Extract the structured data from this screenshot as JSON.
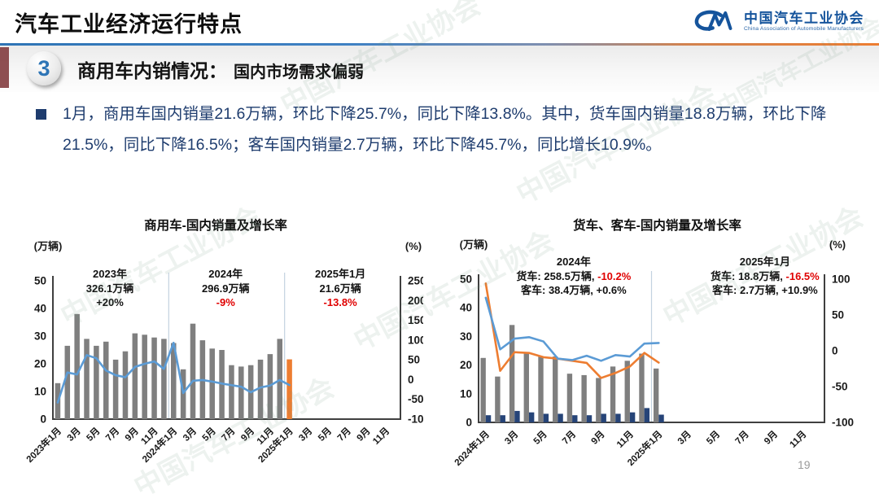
{
  "header": {
    "title": "汽车工业经济运行特点"
  },
  "logo": {
    "org_cn": "中国汽车工业协会",
    "org_en": "China Association of Automobile Manufacturers"
  },
  "section": {
    "number": "3",
    "title": "商用车内销情况：",
    "subtitle": "国内市场需求偏弱"
  },
  "bullet": {
    "text": "1月，商用车国内销量21.6万辆，环比下降25.7%，同比下降13.8%。其中，货车国内销量18.8万辆，环比下降21.5%，同比下降16.5%；客车国内销量2.7万辆，环比下降45.7%，同比增长10.9%。"
  },
  "watermark": {
    "text": "中国汽车工业协会"
  },
  "page": {
    "number": "19"
  },
  "colors": {
    "bar_gray": "#7f7f7f",
    "bar_orange": "#ED7D31",
    "bar_navy": "#264478",
    "line_blue": "#5B9BD5",
    "line_orange": "#ED7D31",
    "negative_red": "#e00000",
    "text_blue": "#1e3c6e",
    "logo_blue": "#15549c"
  },
  "chart_data": [
    {
      "type": "bar+line",
      "title": "商用车-国内销量及增长率",
      "months_total": 36,
      "x_tick_every": 2,
      "x_tick_labels": [
        "2023年1月",
        "3月",
        "5月",
        "7月",
        "9月",
        "11月",
        "2024年1月",
        "3月",
        "5月",
        "7月",
        "9月",
        "11月",
        "2025年1月",
        "3月",
        "5月",
        "7月",
        "9月",
        "11月"
      ],
      "left_axis": {
        "label": "(万辆)",
        "ticks": [
          50,
          40,
          30,
          20,
          10,
          0
        ],
        "range": [
          0,
          50
        ]
      },
      "right_axis": {
        "label": "(%)",
        "ticks": [
          250,
          200,
          150,
          100,
          50,
          0,
          -50,
          -100
        ],
        "range": [
          -100,
          250
        ]
      },
      "dividers": [
        12,
        24
      ],
      "bar_series": [
        {
          "name": "商用车国内销量(万辆)",
          "color": "#7f7f7f",
          "last_color": "#ED7D31",
          "values": [
            13,
            26.5,
            38,
            29,
            26.5,
            28,
            21.5,
            24.5,
            31,
            30.5,
            29.5,
            29,
            27.5,
            18,
            34.5,
            28.5,
            25.5,
            25,
            19.5,
            19,
            19.5,
            21.5,
            23.5,
            29,
            21.6
          ]
        }
      ],
      "line_series": [
        {
          "name": "同比增长率(%)",
          "color": "#5B9BD5",
          "values": [
            -58,
            18,
            13,
            62,
            54,
            23,
            11,
            6,
            32,
            40,
            46,
            27,
            93,
            -34,
            -3,
            -1,
            -5,
            -10,
            -14,
            -18,
            -32,
            -20,
            -15,
            -1,
            -13.8
          ]
        }
      ],
      "annotations": [
        {
          "x_pct": 0.164,
          "lines": [
            [
              {
                "t": "2023年"
              }
            ],
            [
              {
                "t": "326.1万辆"
              }
            ],
            [
              {
                "t": "+20%"
              }
            ]
          ]
        },
        {
          "x_pct": 0.497,
          "lines": [
            [
              {
                "t": "2024年"
              }
            ],
            [
              {
                "t": "296.9万辆"
              }
            ],
            [
              {
                "t": "-9%",
                "red": true
              }
            ]
          ]
        },
        {
          "x_pct": 0.827,
          "lines": [
            [
              {
                "t": "2025年1月"
              }
            ],
            [
              {
                "t": "21.6万辆"
              }
            ],
            [
              {
                "t": "-13.8%",
                "red": true
              }
            ]
          ]
        }
      ]
    },
    {
      "type": "bar+line",
      "title": "货车、客车-国内销量及增长率",
      "months_total": 24,
      "x_tick_every": 2,
      "x_tick_labels": [
        "2024年1月",
        "3月",
        "5月",
        "7月",
        "9月",
        "11月",
        "2025年1月",
        "3月",
        "5月",
        "7月",
        "9月",
        "11月"
      ],
      "left_axis": {
        "label": "(万辆)",
        "ticks": [
          50,
          40,
          30,
          20,
          10,
          0
        ],
        "range": [
          0,
          50
        ]
      },
      "right_axis": {
        "label": "(%)",
        "ticks": [
          100,
          50,
          0,
          -50,
          -100
        ],
        "range": [
          -100,
          100
        ]
      },
      "dividers": [
        12
      ],
      "bar_series": [
        {
          "name": "货车国内销量(万辆)",
          "color": "#7f7f7f",
          "values": [
            22.5,
            16,
            34,
            24,
            23,
            23,
            17,
            16.5,
            15.5,
            19.5,
            21.5,
            24,
            18.8
          ]
        },
        {
          "name": "客车国内销量(万辆)",
          "color": "#264478",
          "values": [
            2.5,
            2.5,
            4,
            3.5,
            3,
            3,
            2.5,
            2.5,
            3,
            3,
            3.5,
            5,
            2.7
          ]
        }
      ],
      "line_series": [
        {
          "name": "货车同比增长率(%)",
          "color": "#ED7D31",
          "values": [
            94,
            -28,
            -2,
            -3,
            -9,
            -11,
            -14,
            -17,
            -38,
            -31,
            -22,
            -3,
            -16.5
          ]
        },
        {
          "name": "客车同比增长率(%)",
          "color": "#5B9BD5",
          "values": [
            74,
            2,
            17,
            19,
            13,
            -11,
            -13,
            -7,
            -14,
            -6,
            -8,
            10,
            10.9
          ]
        }
      ],
      "annotations": [
        {
          "x_pct": 0.275,
          "lines": [
            [
              {
                "t": "2024年"
              }
            ],
            [
              {
                "t": "货车: 258.5万辆, "
              },
              {
                "t": "-10.2%",
                "red": true
              }
            ],
            [
              {
                "t": "客车: 38.4万辆, +0.6%"
              }
            ]
          ]
        },
        {
          "x_pct": 0.828,
          "lines": [
            [
              {
                "t": "2025年1月"
              }
            ],
            [
              {
                "t": "货车: 18.8万辆, "
              },
              {
                "t": "-16.5%",
                "red": true
              }
            ],
            [
              {
                "t": "客车: 2.7万辆, +10.9%"
              }
            ]
          ]
        }
      ]
    }
  ]
}
